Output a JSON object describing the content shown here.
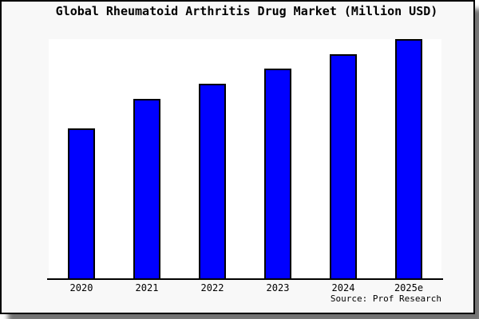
{
  "chart_data": {
    "type": "bar",
    "title": "Global Rheumatoid Arthritis Drug Market (Million USD)",
    "categories": [
      "2020",
      "2021",
      "2022",
      "2023",
      "2024",
      "2025e"
    ],
    "values": [
      62.7,
      75.0,
      81.3,
      87.7,
      93.7,
      100.0
    ],
    "value_scale": "relative, 2025e = 100 (chart shows no y-axis or value labels)",
    "xlabel": "",
    "ylabel": "Million USD",
    "ylim": [
      0,
      100
    ],
    "grid": false,
    "legend": false,
    "source": "Source: Prof Research",
    "colors": {
      "bar_fill": "#0000ff",
      "bar_border": "#000000",
      "plot_background": "#ffffff",
      "canvas_background": "#f8f8f8",
      "frame_border": "#000000",
      "text": "#000000"
    }
  }
}
